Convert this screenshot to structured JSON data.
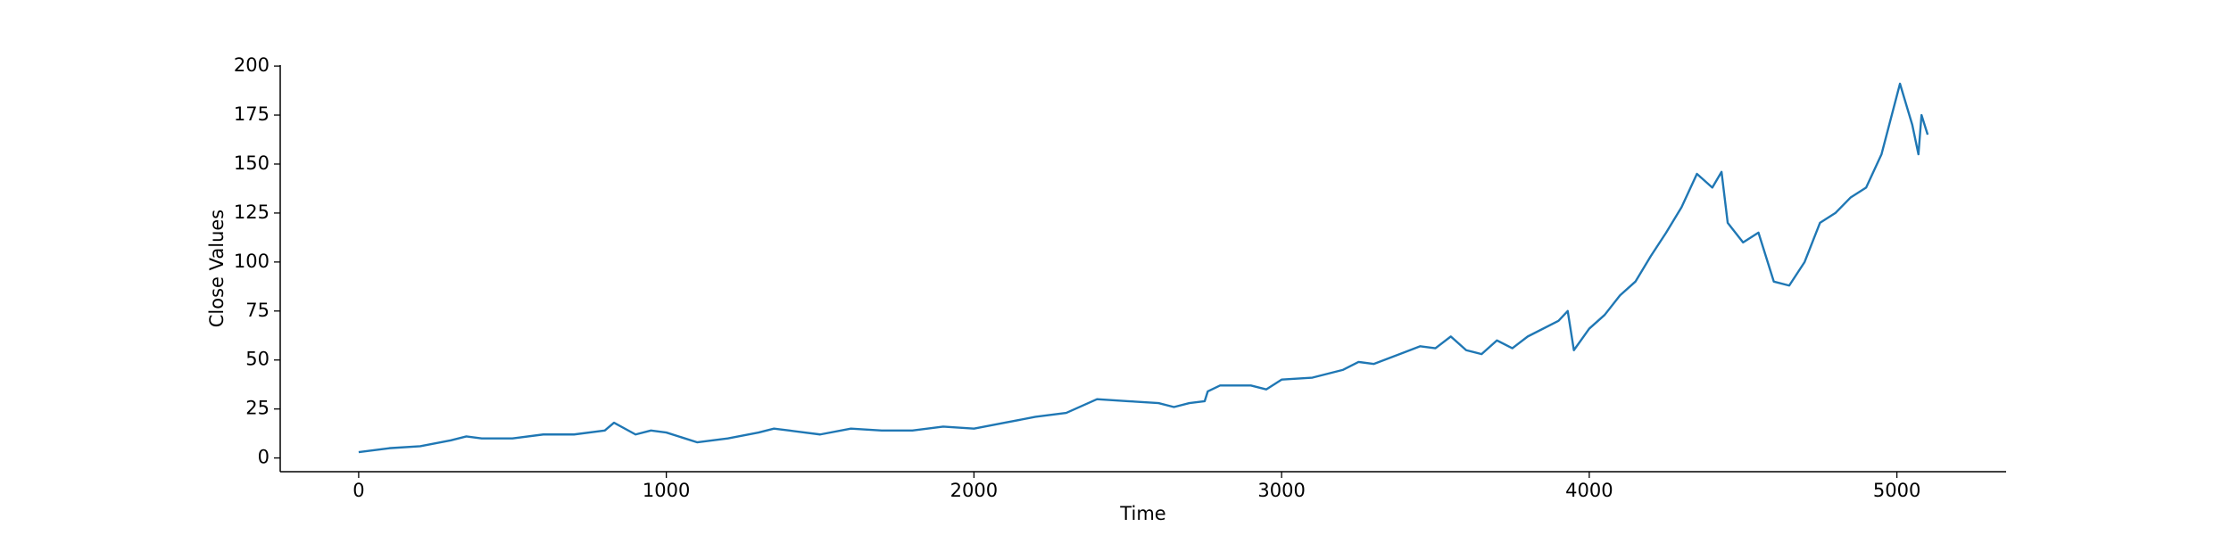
{
  "chart_data": {
    "type": "line",
    "x_label": "Time",
    "y_label": "Close Values",
    "x": [
      0,
      100,
      200,
      300,
      350,
      400,
      500,
      600,
      700,
      800,
      830,
      900,
      950,
      1000,
      1100,
      1200,
      1300,
      1350,
      1400,
      1500,
      1600,
      1700,
      1800,
      1900,
      2000,
      2100,
      2200,
      2300,
      2400,
      2500,
      2600,
      2650,
      2700,
      2750,
      2760,
      2800,
      2900,
      2950,
      3000,
      3100,
      3200,
      3250,
      3300,
      3400,
      3450,
      3500,
      3550,
      3600,
      3650,
      3700,
      3750,
      3800,
      3900,
      3930,
      3950,
      4000,
      4050,
      4100,
      4150,
      4200,
      4250,
      4300,
      4350,
      4400,
      4430,
      4450,
      4500,
      4550,
      4600,
      4650,
      4700,
      4750,
      4800,
      4850,
      4900,
      4950,
      5000,
      5010,
      5050,
      5070,
      5080,
      5100
    ],
    "values": [
      3,
      5,
      6,
      9,
      11,
      10,
      10,
      12,
      12,
      14,
      18,
      12,
      14,
      13,
      8,
      10,
      13,
      15,
      14,
      12,
      15,
      14,
      14,
      16,
      15,
      18,
      21,
      23,
      30,
      29,
      28,
      26,
      28,
      29,
      34,
      37,
      37,
      35,
      40,
      41,
      45,
      49,
      48,
      54,
      57,
      56,
      62,
      55,
      53,
      60,
      56,
      62,
      70,
      75,
      55,
      66,
      73,
      83,
      90,
      103,
      115,
      128,
      145,
      138,
      146,
      120,
      110,
      115,
      90,
      88,
      100,
      120,
      125,
      133,
      138,
      155,
      185,
      191,
      170,
      155,
      175,
      165
    ],
    "color": "#1f77b4",
    "xlim": [
      -255,
      5355
    ],
    "xticks": [
      0,
      1000,
      2000,
      3000,
      4000,
      5000
    ],
    "ylim": [
      -7,
      200.5
    ],
    "yticks": [
      0,
      25,
      50,
      75,
      100,
      125,
      150,
      175,
      200
    ],
    "grid": false
  }
}
